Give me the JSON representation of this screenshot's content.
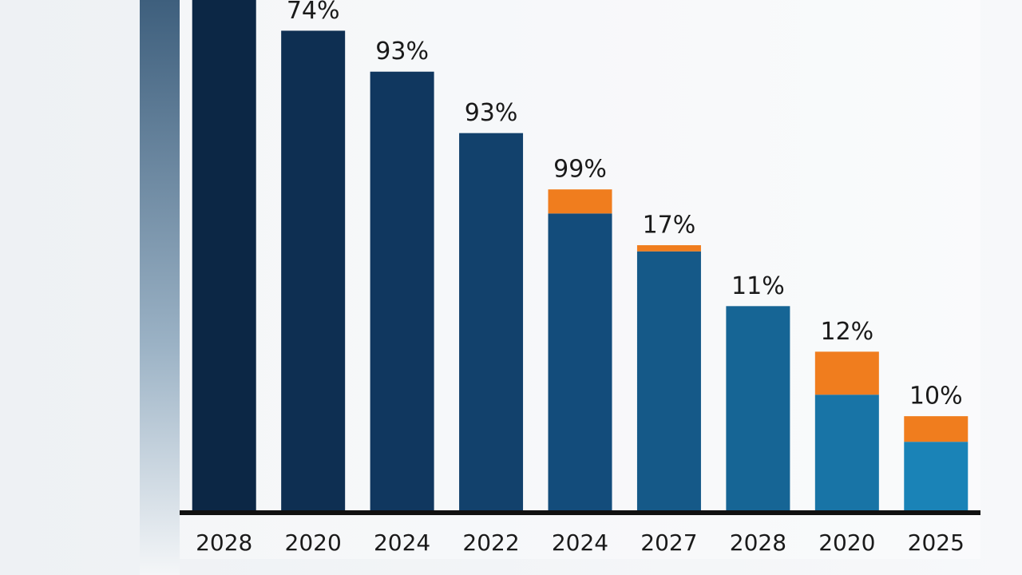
{
  "chart_data": {
    "type": "stacked-bar",
    "categories": [
      "2028",
      "2020",
      "2024",
      "2022",
      "2024",
      "2027",
      "2028",
      "2020",
      "2025"
    ],
    "series": [
      {
        "colors": [
          "#0c2745",
          "#0e2f52",
          "#10375f",
          "#12416c",
          "#134c7b",
          "#155988",
          "#166595",
          "#1874a6",
          "#1a83b7"
        ],
        "values": [
          100,
          94,
          86,
          74,
          58.3,
          50.9,
          40.2,
          22.9,
          13.7
        ]
      },
      {
        "color": "#f07d1e",
        "values": [
          null,
          null,
          null,
          null,
          4.7,
          1.2,
          null,
          8.4,
          5.0
        ]
      }
    ],
    "bar_labels": [
      null,
      "74%",
      "93%",
      "93%",
      "99%",
      "17%",
      "11%",
      "12%",
      "10%"
    ],
    "ylim": [
      0,
      100
    ]
  }
}
